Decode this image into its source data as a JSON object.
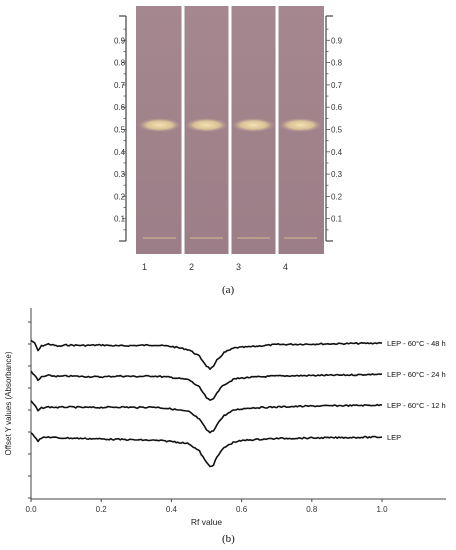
{
  "figure": {
    "panel_a_caption": "(a)",
    "panel_b_caption": "(b)"
  },
  "plate": {
    "scale_ticks": [
      "0.9",
      "0.8",
      "0.7",
      "0.6",
      "0.5",
      "0.4",
      "0.3",
      "0.2",
      "0.1"
    ],
    "lanes": [
      "1",
      "2",
      "3",
      "4"
    ],
    "band_rf": 0.52,
    "colors": {
      "plate": "#9a7e89",
      "band": "#e6d2a2",
      "separator": "#ffffff"
    }
  },
  "chart_data": {
    "type": "line",
    "xlabel": "Rf value",
    "ylabel": "Offset Y values (Absorbance)",
    "xlim": [
      0.0,
      1.0
    ],
    "xticks": [
      "0.0",
      "0.2",
      "0.4",
      "0.6",
      "0.8",
      "1.0"
    ],
    "yticks_labeled": false,
    "series": [
      {
        "name": "LEP - 60°C - 48 h",
        "offset": 3,
        "x": [
          0.0,
          0.01,
          0.02,
          0.03,
          0.05,
          0.08,
          0.1,
          0.15,
          0.2,
          0.25,
          0.3,
          0.35,
          0.4,
          0.45,
          0.48,
          0.5,
          0.51,
          0.52,
          0.53,
          0.55,
          0.58,
          0.62,
          0.7,
          0.8,
          0.9,
          1.0
        ],
        "y": [
          0.5,
          0.2,
          -0.6,
          -0.1,
          0.1,
          -0.15,
          0.0,
          -0.05,
          0.0,
          -0.1,
          -0.05,
          0.0,
          -0.15,
          -0.5,
          -1.2,
          -2.2,
          -2.5,
          -2.3,
          -1.6,
          -0.8,
          -0.3,
          -0.2,
          0.05,
          0.1,
          0.15,
          0.2
        ]
      },
      {
        "name": "LEP - 60°C - 24 h",
        "offset": 2,
        "x": [
          0.0,
          0.01,
          0.02,
          0.03,
          0.05,
          0.08,
          0.1,
          0.15,
          0.2,
          0.25,
          0.3,
          0.35,
          0.4,
          0.45,
          0.48,
          0.5,
          0.51,
          0.52,
          0.53,
          0.55,
          0.58,
          0.62,
          0.7,
          0.8,
          0.9,
          1.0
        ],
        "y": [
          0.5,
          0.1,
          -0.5,
          -0.1,
          0.05,
          -0.05,
          0.0,
          -0.05,
          -0.1,
          0.0,
          -0.05,
          0.0,
          -0.15,
          -0.4,
          -1.2,
          -2.3,
          -2.6,
          -2.4,
          -1.7,
          -0.9,
          -0.3,
          -0.15,
          0.0,
          0.05,
          0.1,
          0.2
        ]
      },
      {
        "name": "LEP - 60°C - 12 h",
        "offset": 1,
        "x": [
          0.0,
          0.01,
          0.02,
          0.03,
          0.05,
          0.08,
          0.1,
          0.15,
          0.2,
          0.25,
          0.3,
          0.35,
          0.4,
          0.45,
          0.48,
          0.5,
          0.51,
          0.52,
          0.53,
          0.55,
          0.58,
          0.62,
          0.7,
          0.8,
          0.9,
          1.0
        ],
        "y": [
          0.6,
          0.2,
          -0.4,
          -0.1,
          0.0,
          -0.05,
          0.0,
          -0.05,
          -0.05,
          0.0,
          -0.05,
          0.0,
          -0.2,
          -0.5,
          -1.3,
          -2.4,
          -2.7,
          -2.5,
          -1.8,
          -0.9,
          -0.3,
          -0.1,
          0.0,
          0.1,
          0.15,
          0.2
        ]
      },
      {
        "name": "LEP",
        "offset": 0,
        "x": [
          0.0,
          0.01,
          0.02,
          0.03,
          0.05,
          0.08,
          0.1,
          0.15,
          0.2,
          0.25,
          0.3,
          0.35,
          0.4,
          0.45,
          0.48,
          0.5,
          0.51,
          0.52,
          0.53,
          0.55,
          0.58,
          0.62,
          0.7,
          0.8,
          0.9,
          1.0
        ],
        "y": [
          0.6,
          0.2,
          -0.3,
          0.0,
          0.1,
          0.0,
          0.0,
          -0.05,
          -0.1,
          -0.15,
          -0.2,
          -0.25,
          -0.35,
          -0.6,
          -1.4,
          -2.6,
          -3.0,
          -2.8,
          -2.0,
          -1.0,
          -0.4,
          -0.2,
          -0.05,
          0.0,
          0.05,
          0.1
        ]
      }
    ]
  }
}
